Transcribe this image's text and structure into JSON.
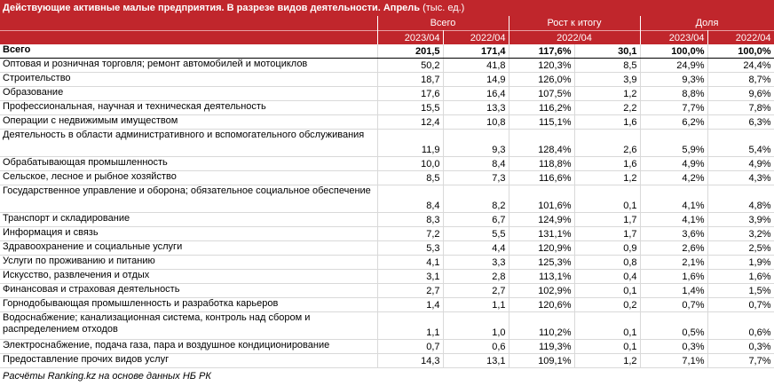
{
  "title": {
    "main": "Действующие активные малые предприятия. В разрезе видов деятельности. Апрель",
    "unit": "(тыс. ед.)"
  },
  "header": {
    "group1": "Всего",
    "group2": "Рост к итогу",
    "group3": "Доля",
    "sub": [
      "2023/04",
      "2022/04",
      "2022/04",
      "",
      "2023/04",
      "2022/04"
    ]
  },
  "rows": [
    {
      "label": "Всего",
      "v": [
        "201,5",
        "171,4",
        "117,6%",
        "30,1",
        "100,0%",
        "100,0%"
      ]
    },
    {
      "label": "Оптовая и розничная торговля; ремонт автомобилей и мотоциклов",
      "v": [
        "50,2",
        "41,8",
        "120,3%",
        "8,5",
        "24,9%",
        "24,4%"
      ]
    },
    {
      "label": "Строительство",
      "v": [
        "18,7",
        "14,9",
        "126,0%",
        "3,9",
        "9,3%",
        "8,7%"
      ]
    },
    {
      "label": "Образование",
      "v": [
        "17,6",
        "16,4",
        "107,5%",
        "1,2",
        "8,8%",
        "9,6%"
      ]
    },
    {
      "label": "Профессиональная, научная и техническая деятельность",
      "v": [
        "15,5",
        "13,3",
        "116,2%",
        "2,2",
        "7,7%",
        "7,8%"
      ]
    },
    {
      "label": "Операции с недвижимым имуществом",
      "v": [
        "12,4",
        "10,8",
        "115,1%",
        "1,6",
        "6,2%",
        "6,3%"
      ]
    },
    {
      "label": "Деятельность в области административного и вспомогательного обслуживания",
      "v": [
        "11,9",
        "9,3",
        "128,4%",
        "2,6",
        "5,9%",
        "5,4%"
      ]
    },
    {
      "label": "Обрабатывающая промышленность",
      "v": [
        "10,0",
        "8,4",
        "118,8%",
        "1,6",
        "4,9%",
        "4,9%"
      ]
    },
    {
      "label": "Сельское, лесное и рыбное хозяйство",
      "v": [
        "8,5",
        "7,3",
        "116,6%",
        "1,2",
        "4,2%",
        "4,3%"
      ]
    },
    {
      "label": "Государственное управление и оборона; обязательное социальное обеспечение",
      "v": [
        "8,4",
        "8,2",
        "101,6%",
        "0,1",
        "4,1%",
        "4,8%"
      ]
    },
    {
      "label": "Транспорт и складирование",
      "v": [
        "8,3",
        "6,7",
        "124,9%",
        "1,7",
        "4,1%",
        "3,9%"
      ]
    },
    {
      "label": "Информация и связь",
      "v": [
        "7,2",
        "5,5",
        "131,1%",
        "1,7",
        "3,6%",
        "3,2%"
      ]
    },
    {
      "label": "Здравоохранение и социальные услуги",
      "v": [
        "5,3",
        "4,4",
        "120,9%",
        "0,9",
        "2,6%",
        "2,5%"
      ]
    },
    {
      "label": "Услуги по проживанию и питанию",
      "v": [
        "4,1",
        "3,3",
        "125,3%",
        "0,8",
        "2,1%",
        "1,9%"
      ]
    },
    {
      "label": "Искусство, развлечения и отдых",
      "v": [
        "3,1",
        "2,8",
        "113,1%",
        "0,4",
        "1,6%",
        "1,6%"
      ]
    },
    {
      "label": "Финансовая и страховая деятельность",
      "v": [
        "2,7",
        "2,7",
        "102,9%",
        "0,1",
        "1,4%",
        "1,5%"
      ]
    },
    {
      "label": "Горнодобывающая промышленность и разработка карьеров",
      "v": [
        "1,4",
        "1,1",
        "120,6%",
        "0,2",
        "0,7%",
        "0,7%"
      ]
    },
    {
      "label": "Водоснабжение; канализационная система, контроль над сбором и распределением отходов",
      "v": [
        "1,1",
        "1,0",
        "110,2%",
        "0,1",
        "0,5%",
        "0,6%"
      ]
    },
    {
      "label": "Электроснабжение, подача газа, пара и воздушное кондиционирование",
      "v": [
        "0,7",
        "0,6",
        "119,3%",
        "0,1",
        "0,3%",
        "0,3%"
      ]
    },
    {
      "label": "Предоставление прочих видов услуг",
      "v": [
        "14,3",
        "13,1",
        "109,1%",
        "1,2",
        "7,1%",
        "7,7%"
      ]
    }
  ],
  "footer": "Расчёты Ranking.kz на основе данных НБ РК",
  "colors": {
    "accent": "#c0262c",
    "grid": "#d9d9d9"
  }
}
